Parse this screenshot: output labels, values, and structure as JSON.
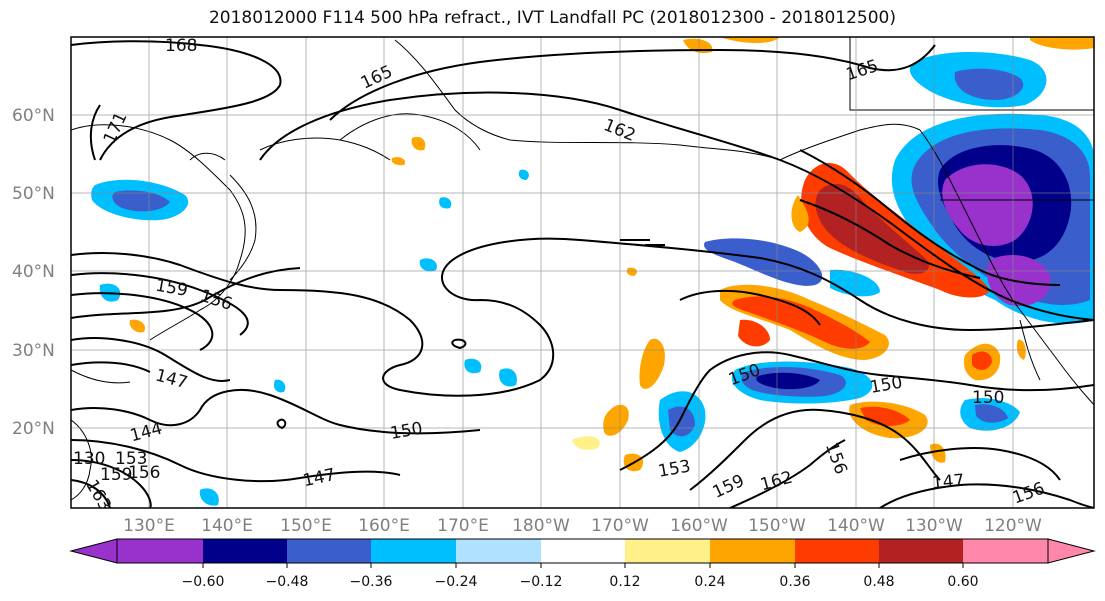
{
  "title": "2018012000 F114 500 hPa refract., IVT Landfall PC (2018012300 - 2018012500)",
  "lat_labels": [
    "60°N",
    "50°N",
    "40°N",
    "30°N",
    "20°N"
  ],
  "lon_labels": [
    "130°E",
    "140°E",
    "150°E",
    "160°E",
    "170°E",
    "180°W",
    "170°W",
    "160°W",
    "150°W",
    "140°W",
    "130°W",
    "120°W"
  ],
  "contour_labels": [
    "168",
    "165",
    "171",
    "162",
    "165",
    "159",
    "156",
    "147",
    "144",
    "150",
    "150",
    "147",
    "153",
    "159",
    "162",
    "156",
    "150",
    "150",
    "147",
    "156",
    "130",
    "153",
    "156",
    "159",
    "163"
  ],
  "colorbar": {
    "tick_labels": [
      "−0.60",
      "−0.48",
      "−0.36",
      "−0.24",
      "−0.12",
      "0.12",
      "0.24",
      "0.36",
      "0.48",
      "0.60"
    ],
    "colors": [
      "#9932cc",
      "#00008b",
      "#3a5fcd",
      "#00bfff",
      "#b0e2ff",
      "#ffffff",
      "#fff08a",
      "#ffa500",
      "#ff3c00",
      "#b22222",
      "#ff88aa"
    ]
  }
}
